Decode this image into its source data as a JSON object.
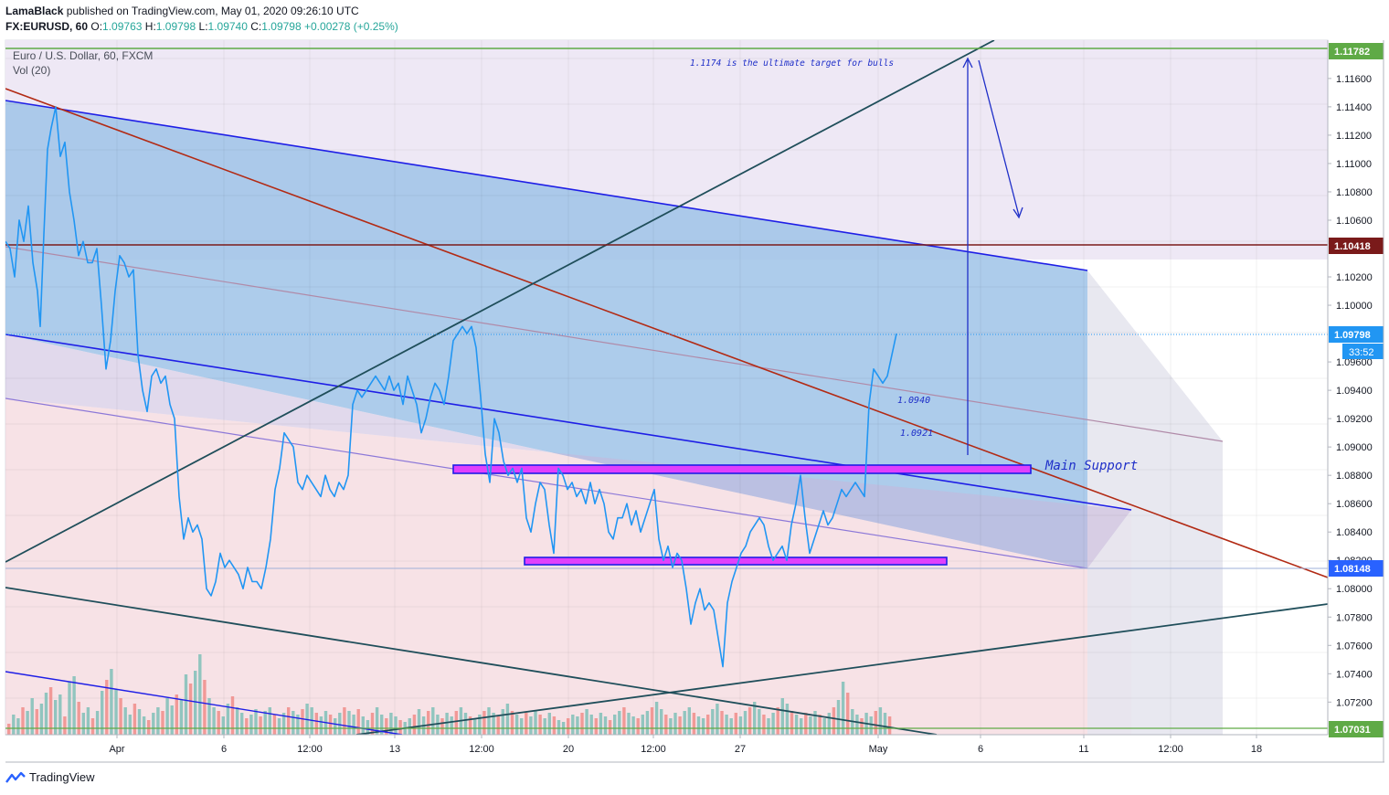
{
  "header": {
    "publisher": "LamaBlack",
    "published_text": " published on TradingView.com, May 01, 2020 09:26:10 UTC",
    "symbol": "FX:EURUSD, 60",
    "open_label": "O:",
    "open": "1.09763",
    "high_label": "H:",
    "high": "1.09798",
    "low_label": "L:",
    "low": "1.09740",
    "close_label": "C:",
    "close": "1.09798",
    "change": "+0.00278 (+0.25%)"
  },
  "legend": {
    "title": "Euro / U.S. Dollar, 60, FXCM",
    "volume": "Vol (20)"
  },
  "annotations": {
    "target_note": "1.1174 is the ultimate target for bulls",
    "main_support": "Main Support",
    "level_1": "1.0940",
    "level_2": "1.0921"
  },
  "footer": {
    "brand": "TradingView"
  },
  "colors": {
    "price_line": "#2196f3",
    "channel_fill": "#9fc3e7",
    "lower_zone_fill": "#f4d6dc",
    "channel_line": "#1e1ee6",
    "red_trend": "#b22a14",
    "teal_trend": "#1f4e5a",
    "resistance_line": "#7a1a1a",
    "support_box_border": "#9c27b0",
    "support_box_fill": "#e040fb",
    "volume_up": "#7fbfb7",
    "volume_down": "#f08c88",
    "target_line": "#5faa46"
  },
  "chart_data": {
    "type": "line",
    "title": "Euro / U.S. Dollar, 60, FXCM",
    "ylim": [
      1.0697,
      1.1187
    ],
    "y_ticks": [
      "1.11600",
      "1.11400",
      "1.11200",
      "1.11000",
      "1.10800",
      "1.10600",
      "1.10200",
      "1.10000",
      "1.09600",
      "1.09400",
      "1.09200",
      "1.09000",
      "1.08800",
      "1.08600",
      "1.08400",
      "1.08200",
      "1.08000",
      "1.07800",
      "1.07600",
      "1.07400",
      "1.07200"
    ],
    "x_ticks": [
      "Apr",
      "6",
      "12:00",
      "13",
      "12:00",
      "20",
      "12:00",
      "27",
      "May",
      "6",
      "11",
      "12:00",
      "18"
    ],
    "price_labels": [
      {
        "value": "1.11782",
        "color": "#5faa46"
      },
      {
        "value": "1.10418",
        "color": "#7a1a1a"
      },
      {
        "value": "1.09798",
        "color": "#2196f3",
        "countdown": "33:52"
      },
      {
        "value": "1.08148",
        "color": "#2962ff"
      },
      {
        "value": "1.07031",
        "color": "#5faa46"
      }
    ],
    "series": [
      {
        "name": "EUR/USD",
        "points": [
          [
            0,
            1.1045
          ],
          [
            5,
            1.104
          ],
          [
            10,
            1.102
          ],
          [
            15,
            1.106
          ],
          [
            20,
            1.1045
          ],
          [
            25,
            1.107
          ],
          [
            30,
            1.103
          ],
          [
            35,
            1.101
          ],
          [
            38,
            1.0985
          ],
          [
            42,
            1.105
          ],
          [
            46,
            1.111
          ],
          [
            50,
            1.1125
          ],
          [
            55,
            1.114
          ],
          [
            60,
            1.1105
          ],
          [
            65,
            1.1115
          ],
          [
            70,
            1.108
          ],
          [
            75,
            1.106
          ],
          [
            80,
            1.1035
          ],
          [
            85,
            1.1045
          ],
          [
            90,
            1.103
          ],
          [
            95,
            1.103
          ],
          [
            100,
            1.104
          ],
          [
            105,
            1.1
          ],
          [
            110,
            1.0955
          ],
          [
            115,
            1.0975
          ],
          [
            120,
            1.101
          ],
          [
            125,
            1.1035
          ],
          [
            130,
            1.103
          ],
          [
            135,
            1.102
          ],
          [
            140,
            1.1025
          ],
          [
            145,
            1.0965
          ],
          [
            150,
            1.094
          ],
          [
            155,
            1.0925
          ],
          [
            160,
            1.095
          ],
          [
            165,
            1.0955
          ],
          [
            170,
            1.0945
          ],
          [
            175,
            1.095
          ],
          [
            180,
            1.093
          ],
          [
            185,
            1.092
          ],
          [
            190,
            1.0865
          ],
          [
            195,
            1.0835
          ],
          [
            200,
            1.085
          ],
          [
            205,
            1.084
          ],
          [
            210,
            1.0845
          ],
          [
            215,
            1.0835
          ],
          [
            220,
            1.08
          ],
          [
            225,
            1.0795
          ],
          [
            230,
            1.0805
          ],
          [
            235,
            1.0825
          ],
          [
            240,
            1.0815
          ],
          [
            245,
            1.082
          ],
          [
            250,
            1.0815
          ],
          [
            255,
            1.081
          ],
          [
            260,
            1.08
          ],
          [
            265,
            1.0815
          ],
          [
            270,
            1.0805
          ],
          [
            275,
            1.0805
          ],
          [
            280,
            1.08
          ],
          [
            285,
            1.0815
          ],
          [
            290,
            1.0835
          ],
          [
            295,
            1.087
          ],
          [
            300,
            1.0885
          ],
          [
            305,
            1.091
          ],
          [
            310,
            1.0905
          ],
          [
            315,
            1.09
          ],
          [
            320,
            1.0875
          ],
          [
            325,
            1.087
          ],
          [
            330,
            1.088
          ],
          [
            335,
            1.0875
          ],
          [
            340,
            1.087
          ],
          [
            345,
            1.0865
          ],
          [
            350,
            1.088
          ],
          [
            355,
            1.087
          ],
          [
            360,
            1.0865
          ],
          [
            365,
            1.0875
          ],
          [
            370,
            1.087
          ],
          [
            375,
            1.088
          ],
          [
            380,
            1.093
          ],
          [
            385,
            1.094
          ],
          [
            390,
            1.0935
          ],
          [
            395,
            1.094
          ],
          [
            400,
            1.0945
          ],
          [
            405,
            1.095
          ],
          [
            410,
            1.0945
          ],
          [
            415,
            1.094
          ],
          [
            420,
            1.095
          ],
          [
            425,
            1.094
          ],
          [
            430,
            1.0945
          ],
          [
            435,
            1.093
          ],
          [
            440,
            1.095
          ],
          [
            445,
            1.094
          ],
          [
            450,
            1.093
          ],
          [
            455,
            1.091
          ],
          [
            460,
            1.092
          ],
          [
            465,
            1.0935
          ],
          [
            470,
            1.0945
          ],
          [
            475,
            1.094
          ],
          [
            480,
            1.093
          ],
          [
            485,
            1.095
          ],
          [
            490,
            1.0975
          ],
          [
            495,
            1.098
          ],
          [
            500,
            1.0985
          ],
          [
            505,
            1.098
          ],
          [
            510,
            1.0985
          ],
          [
            515,
            1.097
          ],
          [
            520,
            1.0935
          ],
          [
            525,
            1.0895
          ],
          [
            530,
            1.0875
          ],
          [
            535,
            1.092
          ],
          [
            540,
            1.091
          ],
          [
            545,
            1.089
          ],
          [
            550,
            1.088
          ],
          [
            555,
            1.0885
          ],
          [
            560,
            1.0875
          ],
          [
            565,
            1.0885
          ],
          [
            570,
            1.085
          ],
          [
            575,
            1.084
          ],
          [
            580,
            1.086
          ],
          [
            585,
            1.0875
          ],
          [
            590,
            1.087
          ],
          [
            595,
            1.0845
          ],
          [
            600,
            1.0825
          ],
          [
            605,
            1.0885
          ],
          [
            610,
            1.088
          ],
          [
            615,
            1.087
          ],
          [
            620,
            1.0875
          ],
          [
            625,
            1.0865
          ],
          [
            630,
            1.087
          ],
          [
            635,
            1.086
          ],
          [
            640,
            1.0875
          ],
          [
            645,
            1.086
          ],
          [
            650,
            1.087
          ],
          [
            655,
            1.086
          ],
          [
            660,
            1.084
          ],
          [
            665,
            1.0835
          ],
          [
            670,
            1.085
          ],
          [
            675,
            1.085
          ],
          [
            680,
            1.086
          ],
          [
            685,
            1.0845
          ],
          [
            690,
            1.0855
          ],
          [
            695,
            1.084
          ],
          [
            700,
            1.085
          ],
          [
            705,
            1.086
          ],
          [
            710,
            1.087
          ],
          [
            715,
            1.0835
          ],
          [
            720,
            1.082
          ],
          [
            725,
            1.083
          ],
          [
            730,
            1.0815
          ],
          [
            735,
            1.0825
          ],
          [
            740,
            1.082
          ],
          [
            745,
            1.08
          ],
          [
            750,
            1.0775
          ],
          [
            755,
            1.079
          ],
          [
            760,
            1.08
          ],
          [
            765,
            1.0785
          ],
          [
            770,
            1.079
          ],
          [
            775,
            1.0785
          ],
          [
            780,
            1.0765
          ],
          [
            785,
            1.0745
          ],
          [
            790,
            1.079
          ],
          [
            795,
            1.0805
          ],
          [
            800,
            1.0815
          ],
          [
            805,
            1.0825
          ],
          [
            810,
            1.083
          ],
          [
            815,
            1.084
          ],
          [
            820,
            1.0845
          ],
          [
            825,
            1.085
          ],
          [
            830,
            1.0845
          ],
          [
            835,
            1.083
          ],
          [
            840,
            1.082
          ],
          [
            845,
            1.0825
          ],
          [
            850,
            1.083
          ],
          [
            855,
            1.082
          ],
          [
            860,
            1.0845
          ],
          [
            865,
            1.086
          ],
          [
            870,
            1.088
          ],
          [
            875,
            1.085
          ],
          [
            880,
            1.0825
          ],
          [
            885,
            1.0835
          ],
          [
            890,
            1.0845
          ],
          [
            895,
            1.0855
          ],
          [
            900,
            1.0845
          ],
          [
            905,
            1.085
          ],
          [
            910,
            1.086
          ],
          [
            915,
            1.087
          ],
          [
            920,
            1.0865
          ],
          [
            925,
            1.087
          ],
          [
            930,
            1.0875
          ],
          [
            935,
            1.087
          ],
          [
            940,
            1.0865
          ],
          [
            945,
            1.093
          ],
          [
            950,
            1.0955
          ],
          [
            955,
            1.095
          ],
          [
            960,
            1.0945
          ],
          [
            965,
            1.095
          ],
          [
            970,
            1.0965
          ],
          [
            975,
            1.098
          ]
        ]
      }
    ],
    "volume": [
      12,
      22,
      18,
      30,
      26,
      40,
      28,
      34,
      46,
      52,
      38,
      44,
      20,
      58,
      64,
      36,
      24,
      30,
      18,
      26,
      48,
      60,
      72,
      50,
      40,
      30,
      22,
      34,
      28,
      20,
      16,
      24,
      30,
      26,
      40,
      32,
      44,
      38,
      66,
      56,
      70,
      88,
      60,
      40,
      30,
      26,
      20,
      34,
      42,
      30,
      24,
      18,
      22,
      28,
      20,
      26,
      30,
      22,
      18,
      24,
      30,
      26,
      22,
      28,
      34,
      30,
      24,
      20,
      26,
      22,
      18,
      24,
      30,
      26,
      22,
      28,
      20,
      16,
      24,
      30,
      22,
      18,
      24,
      20,
      16,
      14,
      18,
      22,
      28,
      20,
      26,
      30,
      22,
      18,
      24,
      20,
      26,
      30,
      24,
      20,
      18,
      22,
      26,
      30,
      24,
      20,
      28,
      34,
      26,
      22,
      18,
      24,
      20,
      26,
      22,
      18,
      24,
      20,
      16,
      14,
      18,
      22,
      20,
      24,
      28,
      22,
      18,
      24,
      20,
      16,
      22,
      26,
      30,
      24,
      20,
      18,
      22,
      26,
      30,
      36,
      28,
      22,
      18,
      24,
      20,
      26,
      30,
      24,
      20,
      18,
      22,
      28,
      34,
      26,
      22,
      18,
      24,
      20,
      26,
      30,
      36,
      28,
      22,
      18,
      24,
      30,
      40,
      34,
      26,
      22,
      18,
      24,
      20,
      26,
      22,
      18,
      24,
      30,
      38,
      58,
      46,
      28,
      22,
      18,
      24,
      20,
      26,
      30,
      24,
      20
    ]
  }
}
